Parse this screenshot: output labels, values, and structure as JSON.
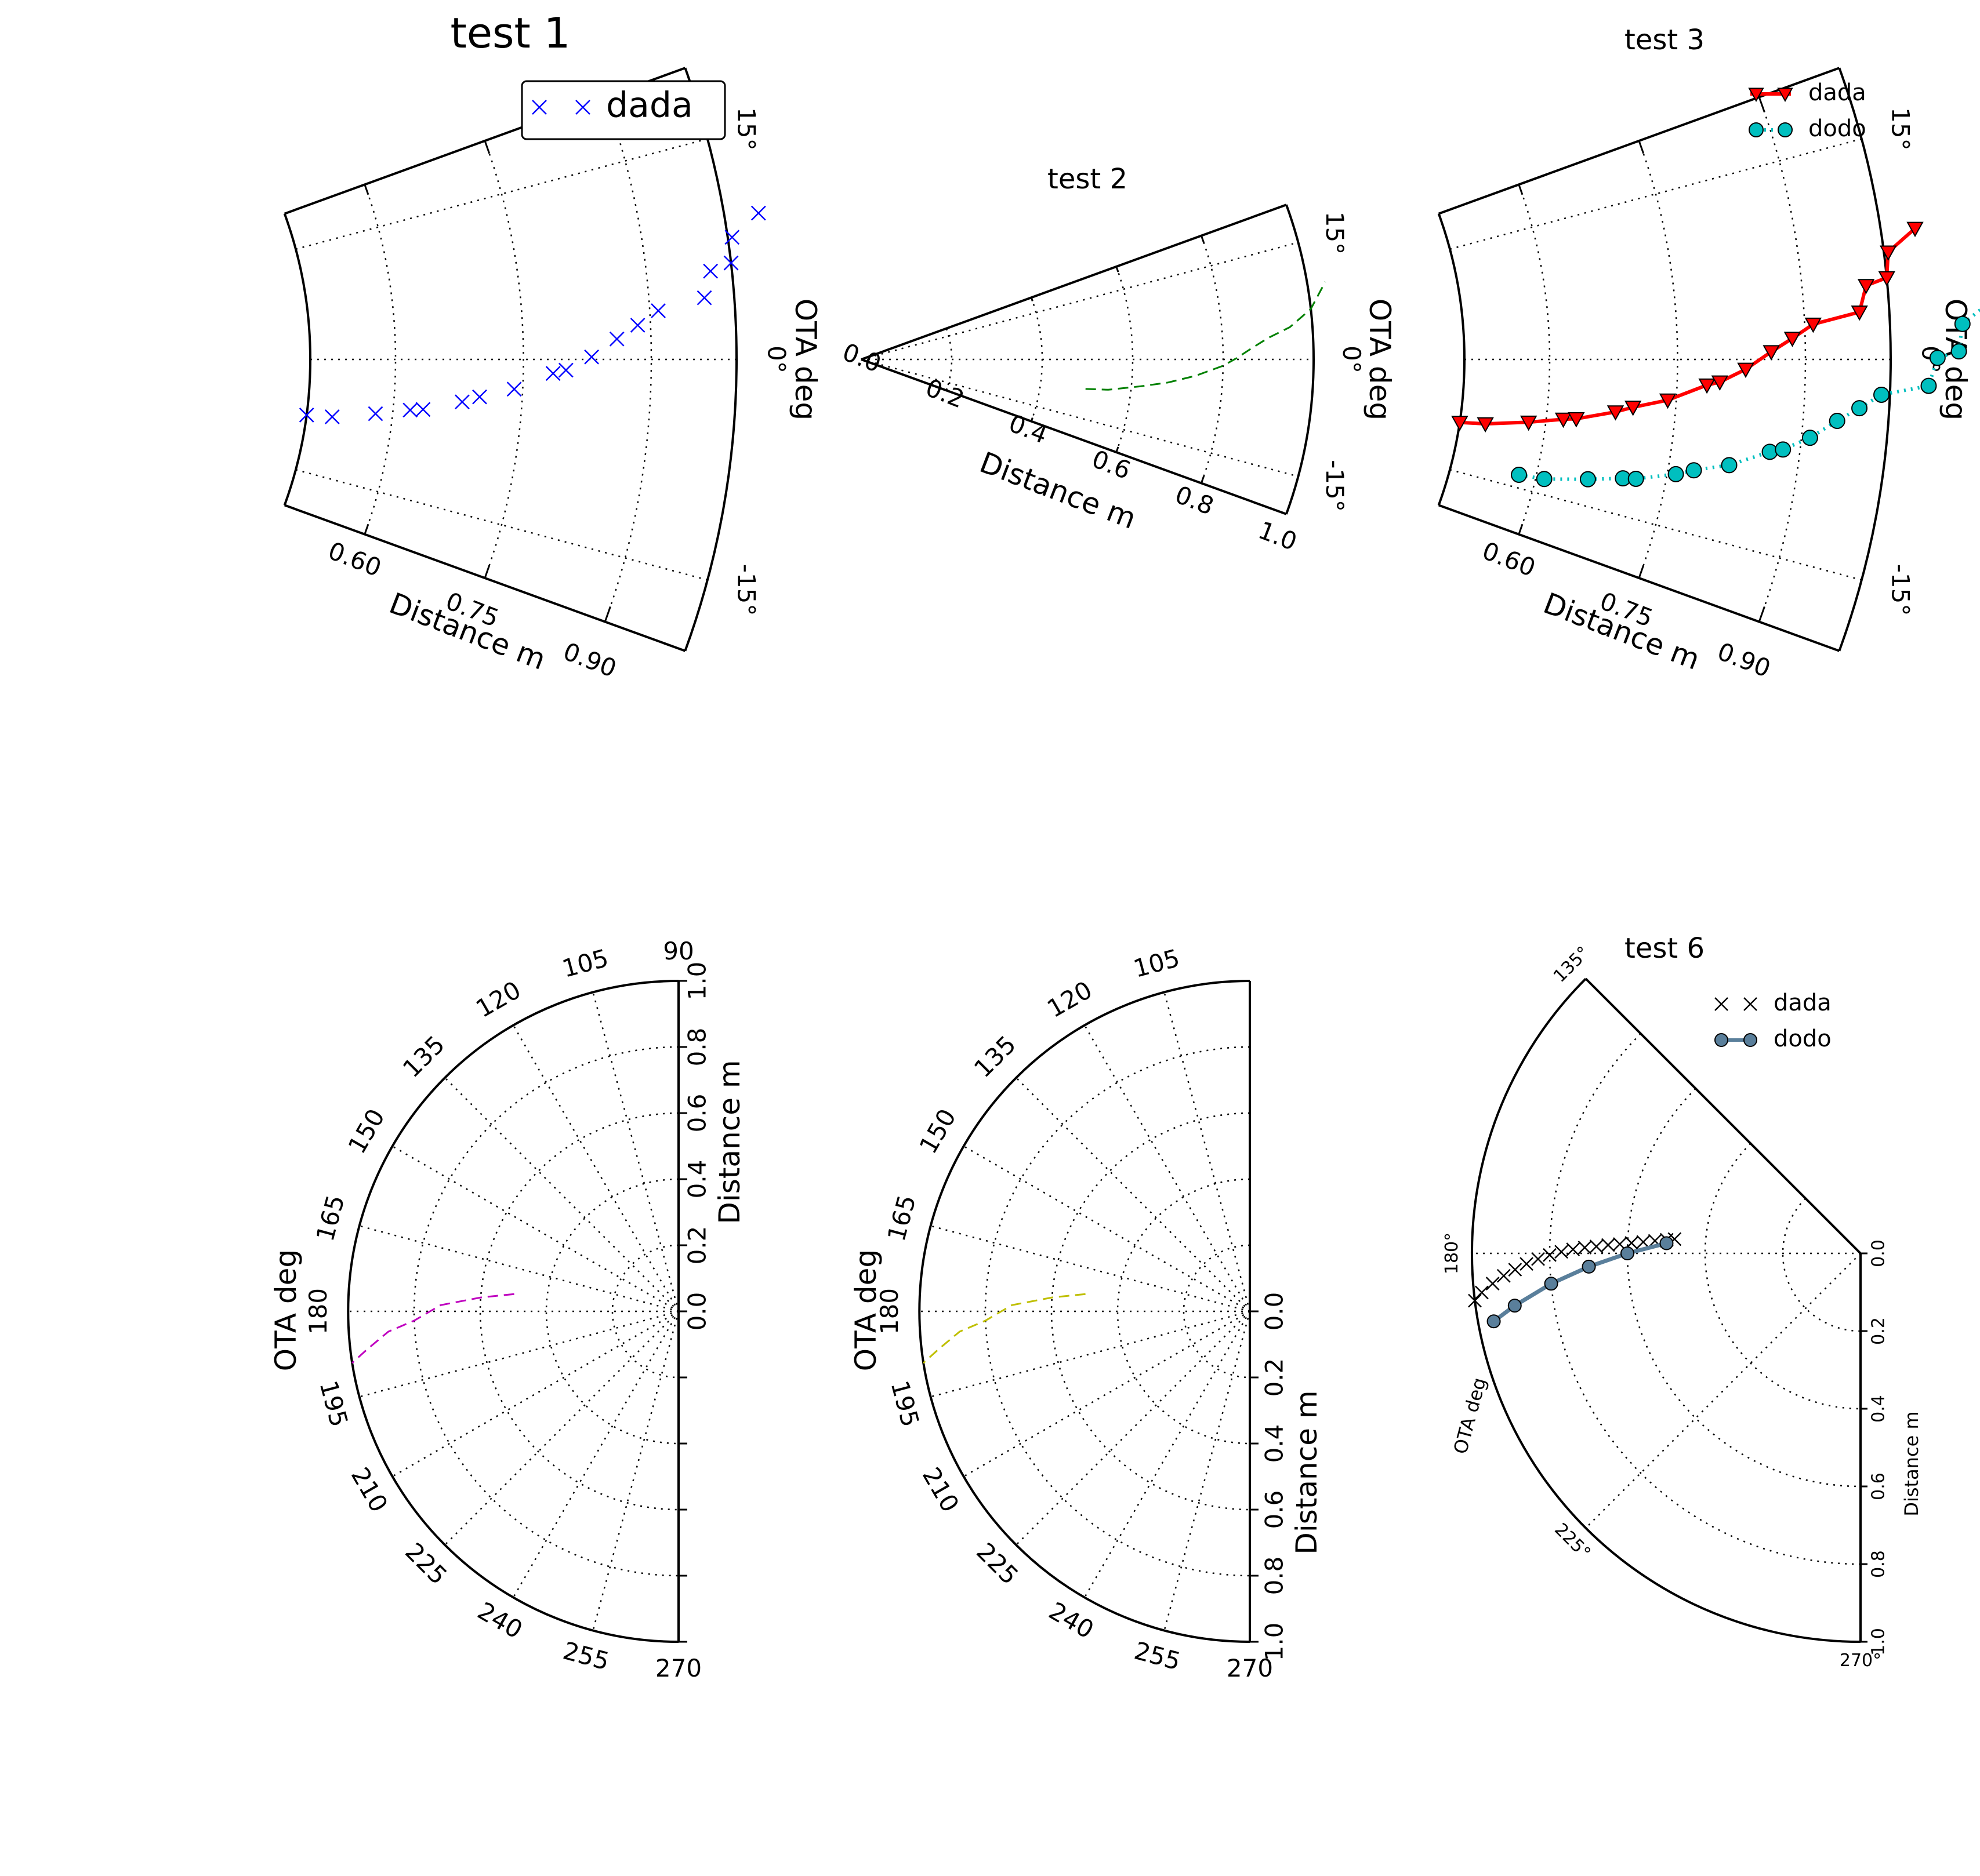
{
  "chart_data": [
    {
      "type": "scatter",
      "projection": "polar",
      "title": "test 1",
      "xlabel": "Distance m",
      "ylabel": "OTA deg",
      "radial_ticks": [
        "0.60",
        "0.75",
        "0.90"
      ],
      "angular_ticks": [
        "15°",
        "0°",
        "-15°"
      ],
      "rlim": [
        0.5,
        1.0
      ],
      "thetalim": [
        -20,
        20
      ],
      "grid": true,
      "legend": "top-right",
      "series": [
        {
          "name": "dada",
          "color": "#0000ff",
          "marker": "x",
          "linestyle": "none",
          "points": [
            [
              0.5,
              -7.5
            ],
            [
              0.53,
              -7.3
            ],
            [
              0.58,
              -6.3
            ],
            [
              0.62,
              -5.5
            ],
            [
              0.635,
              -5.3
            ],
            [
              0.68,
              -4.2
            ],
            [
              0.7,
              -3.6
            ],
            [
              0.74,
              -2.7
            ],
            [
              0.785,
              -1.2
            ],
            [
              0.8,
              -0.9
            ],
            [
              0.83,
              0.2
            ],
            [
              0.86,
              1.6
            ],
            [
              0.885,
              2.6
            ],
            [
              0.91,
              3.6
            ],
            [
              0.965,
              4.3
            ],
            [
              0.975,
              6.1
            ],
            [
              1.0,
              6.5
            ],
            [
              1.005,
              8.2
            ],
            [
              1.04,
              9.5
            ]
          ]
        }
      ]
    },
    {
      "type": "line",
      "projection": "polar",
      "title": "test 2",
      "xlabel": "Distance m",
      "ylabel": "OTA deg",
      "radial_ticks": [
        "0.0",
        "0.2",
        "0.4",
        "0.6",
        "0.8",
        "1.0"
      ],
      "angular_ticks": [
        "15°",
        "0°",
        "-15°"
      ],
      "rlim": [
        0,
        1.0
      ],
      "thetalim": [
        -20,
        20
      ],
      "grid": true,
      "series": [
        {
          "name": "",
          "color": "#008000",
          "linestyle": "dashed",
          "points": [
            [
              0.5,
              -7.5
            ],
            [
              0.55,
              -7.0
            ],
            [
              0.62,
              -5.5
            ],
            [
              0.68,
              -4.3
            ],
            [
              0.74,
              -2.8
            ],
            [
              0.8,
              -1.0
            ],
            [
              0.83,
              0.2
            ],
            [
              0.86,
              1.5
            ],
            [
              0.9,
              3.0
            ],
            [
              0.95,
              4.3
            ],
            [
              1.0,
              6.4
            ],
            [
              1.04,
              9.5
            ]
          ]
        }
      ]
    },
    {
      "type": "line",
      "projection": "polar",
      "title": "test 3",
      "xlabel": "Distance m",
      "ylabel": "OTA deg",
      "radial_ticks": [
        "0.60",
        "0.75",
        "0.90"
      ],
      "angular_ticks": [
        "15°",
        "0°",
        "-15°"
      ],
      "rlim": [
        0.5,
        1.0
      ],
      "thetalim": [
        -20,
        20
      ],
      "grid": true,
      "legend": "top-right",
      "series": [
        {
          "name": "dada",
          "color": "#ff0000",
          "marker": "v",
          "linestyle": "solid",
          "points": [
            [
              0.5,
              -8.5
            ],
            [
              0.53,
              -8.2
            ],
            [
              0.58,
              -7.3
            ],
            [
              0.62,
              -6.5
            ],
            [
              0.635,
              -6.3
            ],
            [
              0.68,
              -5.2
            ],
            [
              0.7,
              -4.6
            ],
            [
              0.74,
              -3.7
            ],
            [
              0.785,
              -2.2
            ],
            [
              0.8,
              -1.9
            ],
            [
              0.83,
              -0.8
            ],
            [
              0.86,
              0.6
            ],
            [
              0.885,
              1.6
            ],
            [
              0.91,
              2.6
            ],
            [
              0.965,
              3.3
            ],
            [
              0.975,
              5.1
            ],
            [
              1.0,
              5.5
            ],
            [
              1.005,
              7.2
            ],
            [
              1.04,
              8.5
            ]
          ]
        },
        {
          "name": "dodo",
          "color": "#00bfbf",
          "marker": "o",
          "linestyle": "dotted",
          "points": [
            [
              0.58,
              -13.5
            ],
            [
              0.61,
              -13.3
            ],
            [
              0.66,
              -12.3
            ],
            [
              0.7,
              -11.5
            ],
            [
              0.715,
              -11.3
            ],
            [
              0.76,
              -10.2
            ],
            [
              0.78,
              -9.6
            ],
            [
              0.82,
              -8.7
            ],
            [
              0.865,
              -7.2
            ],
            [
              0.88,
              -6.9
            ],
            [
              0.91,
              -5.8
            ],
            [
              0.94,
              -4.4
            ],
            [
              0.965,
              -3.4
            ],
            [
              0.99,
              -2.4
            ],
            [
              1.045,
              -1.7
            ],
            [
              1.055,
              0.1
            ],
            [
              1.08,
              0.5
            ],
            [
              1.085,
              2.2
            ],
            [
              1.12,
              3.5
            ]
          ]
        }
      ]
    },
    {
      "type": "line",
      "projection": "polar",
      "title": "",
      "xlabel": "Distance m",
      "ylabel": "OTA deg",
      "radial_ticks": [
        "0.0",
        "0.2",
        "0.4",
        "0.6",
        "0.8",
        "1.0"
      ],
      "angular_ticks": [
        "90",
        "105",
        "120",
        "135",
        "150",
        "165",
        "180",
        "195",
        "210",
        "225",
        "240",
        "255",
        "270"
      ],
      "rlim": [
        0,
        1.0
      ],
      "thetalim": [
        90,
        270
      ],
      "grid": true,
      "series": [
        {
          "name": "",
          "color": "#bf00bf",
          "linestyle": "dashed",
          "points": [
            [
              0.5,
              174
            ],
            [
              0.6,
              176
            ],
            [
              0.72,
              178.5
            ],
            [
              0.8,
              182
            ],
            [
              0.88,
              184
            ],
            [
              0.95,
              187
            ],
            [
              1.0,
              189
            ]
          ]
        }
      ]
    },
    {
      "type": "line",
      "projection": "polar",
      "title": "",
      "xlabel": "Distance m",
      "ylabel": "OTA deg",
      "radial_ticks": [
        "0.0",
        "0.2",
        "0.4",
        "0.6",
        "0.8",
        "1.0"
      ],
      "angular_ticks": [
        "105",
        "120",
        "135",
        "150",
        "165",
        "180",
        "195",
        "210",
        "225",
        "240",
        "255",
        "270"
      ],
      "rlim": [
        0,
        1.0
      ],
      "thetalim": [
        90,
        270
      ],
      "grid": true,
      "series": [
        {
          "name": "",
          "color": "#bfbf00",
          "linestyle": "dashed",
          "points": [
            [
              0.5,
              174
            ],
            [
              0.6,
              176
            ],
            [
              0.72,
              178.5
            ],
            [
              0.8,
              182
            ],
            [
              0.88,
              184
            ],
            [
              0.95,
              187
            ],
            [
              1.0,
              189
            ]
          ]
        }
      ]
    },
    {
      "type": "line",
      "projection": "polar",
      "title": "test 6",
      "xlabel": "Distance m",
      "ylabel": "OTA deg",
      "radial_ticks": [
        "0.0",
        "0.2",
        "0.4",
        "0.6",
        "0.8",
        "1.0"
      ],
      "angular_ticks": [
        "135°",
        "180°",
        "225°",
        "270°"
      ],
      "rlim": [
        0,
        1.0
      ],
      "thetalim": [
        135,
        270
      ],
      "grid": true,
      "legend": "top-right",
      "series": [
        {
          "name": "dada",
          "color": "#000000",
          "marker": "x",
          "linestyle": "none",
          "points": [
            [
              0.48,
              175.6
            ],
            [
              0.5,
              176.0
            ],
            [
              0.53,
              176.5
            ],
            [
              0.56,
              177.0
            ],
            [
              0.59,
              177.4
            ],
            [
              0.62,
              177.8
            ],
            [
              0.65,
              178.1
            ],
            [
              0.68,
              178.5
            ],
            [
              0.71,
              178.8
            ],
            [
              0.74,
              179.2
            ],
            [
              0.77,
              179.7
            ],
            [
              0.8,
              180.3
            ],
            [
              0.83,
              181.0
            ],
            [
              0.86,
              181.8
            ],
            [
              0.89,
              182.7
            ],
            [
              0.92,
              183.6
            ],
            [
              0.95,
              184.7
            ],
            [
              0.98,
              185.9
            ],
            [
              1.0,
              187.0
            ]
          ]
        },
        {
          "name": "dodo",
          "color": "#5a7f9b",
          "marker": "o",
          "linestyle": "solid",
          "points": [
            [
              0.5,
              177.0
            ],
            [
              0.6,
              180.0
            ],
            [
              0.7,
              182.8
            ],
            [
              0.8,
              185.6
            ],
            [
              0.9,
              188.6
            ],
            [
              0.96,
              190.5
            ]
          ]
        }
      ]
    }
  ]
}
